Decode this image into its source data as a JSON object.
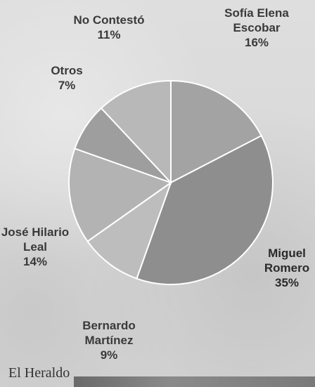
{
  "brand": "El Heraldo",
  "chart_data": {
    "type": "pie",
    "slices": [
      {
        "label_lines": [
          "Sofía Elena",
          "Escobar"
        ],
        "percent_text": "16%",
        "value": 16,
        "color": "#a3a3a3"
      },
      {
        "label_lines": [
          "Miguel",
          "Romero"
        ],
        "percent_text": "35%",
        "value": 35,
        "color": "#8e8e8e"
      },
      {
        "label_lines": [
          "Bernardo",
          "Martínez"
        ],
        "percent_text": "9%",
        "value": 9,
        "color": "#bdbdbd"
      },
      {
        "label_lines": [
          "José Hilario",
          "Leal"
        ],
        "percent_text": "14%",
        "value": 14,
        "color": "#b3b3b3"
      },
      {
        "label_lines": [
          "Otros"
        ],
        "percent_text": "7%",
        "value": 7,
        "color": "#9e9e9e"
      },
      {
        "label_lines": [
          "No Contestó"
        ],
        "percent_text": "11%",
        "value": 11,
        "color": "#b8b8b8"
      }
    ]
  }
}
